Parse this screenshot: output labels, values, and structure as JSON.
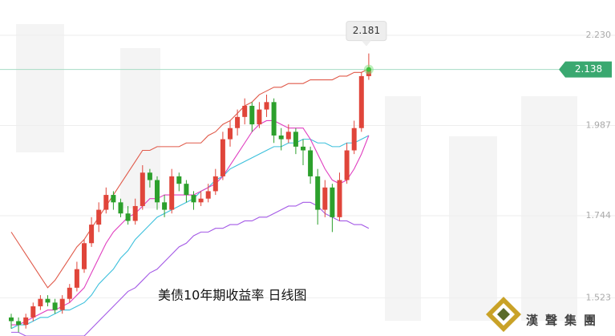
{
  "chart_data": {
    "type": "candlestick",
    "title": "美债10年期收益率 日线图",
    "logo_text": "漢聲集團",
    "ylim": [
      1.42,
      2.325
    ],
    "yticks": [
      {
        "value": 2.23,
        "label": "2.230"
      },
      1.987,
      1.744,
      1.523
    ],
    "grid": true,
    "up_color": "#e0453a",
    "down_color": "#2ca02c",
    "open": [
      1.47,
      1.46,
      1.45,
      1.47,
      1.5,
      1.52,
      1.51,
      1.49,
      1.52,
      1.55,
      1.6,
      1.67,
      1.72,
      1.76,
      1.8,
      1.78,
      1.75,
      1.73,
      1.77,
      1.86,
      1.84,
      1.78,
      1.76,
      1.85,
      1.83,
      1.8,
      1.78,
      1.79,
      1.81,
      1.85,
      1.95,
      1.98,
      2.01,
      2.04,
      1.99,
      2.03,
      2.05,
      1.96,
      1.95,
      1.97,
      1.93,
      1.92,
      1.85,
      1.76,
      1.82,
      1.74,
      1.84,
      1.92,
      1.98,
      2.12
    ],
    "high": [
      1.48,
      1.47,
      1.48,
      1.51,
      1.53,
      1.53,
      1.52,
      1.53,
      1.56,
      1.62,
      1.68,
      1.74,
      1.78,
      1.82,
      1.81,
      1.79,
      1.77,
      1.79,
      1.88,
      1.87,
      1.85,
      1.8,
      1.87,
      1.86,
      1.84,
      1.81,
      1.81,
      1.83,
      1.87,
      1.97,
      2.0,
      2.03,
      2.06,
      2.05,
      2.05,
      2.07,
      2.06,
      1.98,
      1.99,
      1.98,
      1.95,
      1.93,
      1.87,
      1.84,
      1.83,
      1.86,
      1.94,
      2.0,
      2.13,
      2.181
    ],
    "low": [
      1.44,
      1.43,
      1.44,
      1.46,
      1.49,
      1.5,
      1.48,
      1.48,
      1.51,
      1.54,
      1.59,
      1.66,
      1.7,
      1.75,
      1.76,
      1.74,
      1.72,
      1.72,
      1.76,
      1.82,
      1.76,
      1.74,
      1.75,
      1.81,
      1.78,
      1.76,
      1.77,
      1.78,
      1.8,
      1.84,
      1.93,
      1.96,
      1.99,
      1.97,
      1.98,
      2.01,
      1.94,
      1.92,
      1.94,
      1.91,
      1.88,
      1.83,
      1.72,
      1.74,
      1.7,
      1.73,
      1.83,
      1.91,
      1.97,
      2.11
    ],
    "close": [
      1.46,
      1.45,
      1.47,
      1.5,
      1.52,
      1.51,
      1.49,
      1.52,
      1.55,
      1.6,
      1.67,
      1.72,
      1.76,
      1.8,
      1.78,
      1.75,
      1.73,
      1.77,
      1.86,
      1.84,
      1.78,
      1.76,
      1.85,
      1.83,
      1.8,
      1.78,
      1.79,
      1.81,
      1.85,
      1.95,
      1.98,
      2.01,
      2.04,
      1.99,
      2.03,
      2.05,
      1.96,
      1.95,
      1.97,
      1.93,
      1.92,
      1.85,
      1.76,
      1.82,
      1.74,
      1.84,
      1.92,
      1.98,
      2.12,
      2.138
    ],
    "series": [
      {
        "color": "#e05a4a",
        "values": [
          1.7,
          1.67,
          1.64,
          1.61,
          1.58,
          1.55,
          1.57,
          1.6,
          1.63,
          1.66,
          1.68,
          1.71,
          1.74,
          1.77,
          1.8,
          1.83,
          1.86,
          1.89,
          1.92,
          1.92,
          1.93,
          1.93,
          1.93,
          1.93,
          1.94,
          1.94,
          1.94,
          1.96,
          1.97,
          1.99,
          2.0,
          2.02,
          2.04,
          2.05,
          2.07,
          2.08,
          2.09,
          2.09,
          2.1,
          2.1,
          2.1,
          2.11,
          2.11,
          2.11,
          2.11,
          2.12,
          2.12,
          2.13,
          2.13,
          2.14
        ]
      },
      {
        "color": "#3cc0dc",
        "values": [
          1.44,
          1.45,
          1.45,
          1.46,
          1.47,
          1.47,
          1.48,
          1.49,
          1.49,
          1.5,
          1.51,
          1.53,
          1.56,
          1.58,
          1.6,
          1.63,
          1.65,
          1.68,
          1.7,
          1.72,
          1.74,
          1.75,
          1.76,
          1.77,
          1.78,
          1.79,
          1.81,
          1.82,
          1.84,
          1.85,
          1.87,
          1.88,
          1.89,
          1.9,
          1.91,
          1.92,
          1.93,
          1.93,
          1.94,
          1.94,
          1.95,
          1.95,
          1.94,
          1.94,
          1.93,
          1.93,
          1.94,
          1.94,
          1.95,
          1.96
        ]
      },
      {
        "color": "#e03fc0",
        "values": [
          1.45,
          1.45,
          1.46,
          1.47,
          1.48,
          1.49,
          1.49,
          1.5,
          1.51,
          1.53,
          1.55,
          1.59,
          1.63,
          1.67,
          1.7,
          1.72,
          1.74,
          1.75,
          1.77,
          1.79,
          1.79,
          1.8,
          1.8,
          1.8,
          1.8,
          1.8,
          1.81,
          1.82,
          1.83,
          1.85,
          1.88,
          1.91,
          1.94,
          1.97,
          1.99,
          2.0,
          2.0,
          1.99,
          1.98,
          1.98,
          1.98,
          1.95,
          1.91,
          1.87,
          1.84,
          1.83,
          1.84,
          1.87,
          1.91,
          1.96
        ]
      },
      {
        "color": "#a45ae6",
        "values": [
          1.43,
          1.43,
          1.42,
          1.42,
          1.42,
          1.42,
          1.42,
          1.42,
          1.42,
          1.42,
          1.42,
          1.44,
          1.46,
          1.48,
          1.5,
          1.52,
          1.54,
          1.55,
          1.57,
          1.59,
          1.6,
          1.62,
          1.64,
          1.66,
          1.67,
          1.69,
          1.7,
          1.7,
          1.71,
          1.71,
          1.72,
          1.72,
          1.73,
          1.73,
          1.74,
          1.74,
          1.75,
          1.76,
          1.77,
          1.77,
          1.78,
          1.78,
          1.77,
          1.75,
          1.74,
          1.73,
          1.73,
          1.72,
          1.72,
          1.71
        ]
      }
    ]
  }
}
